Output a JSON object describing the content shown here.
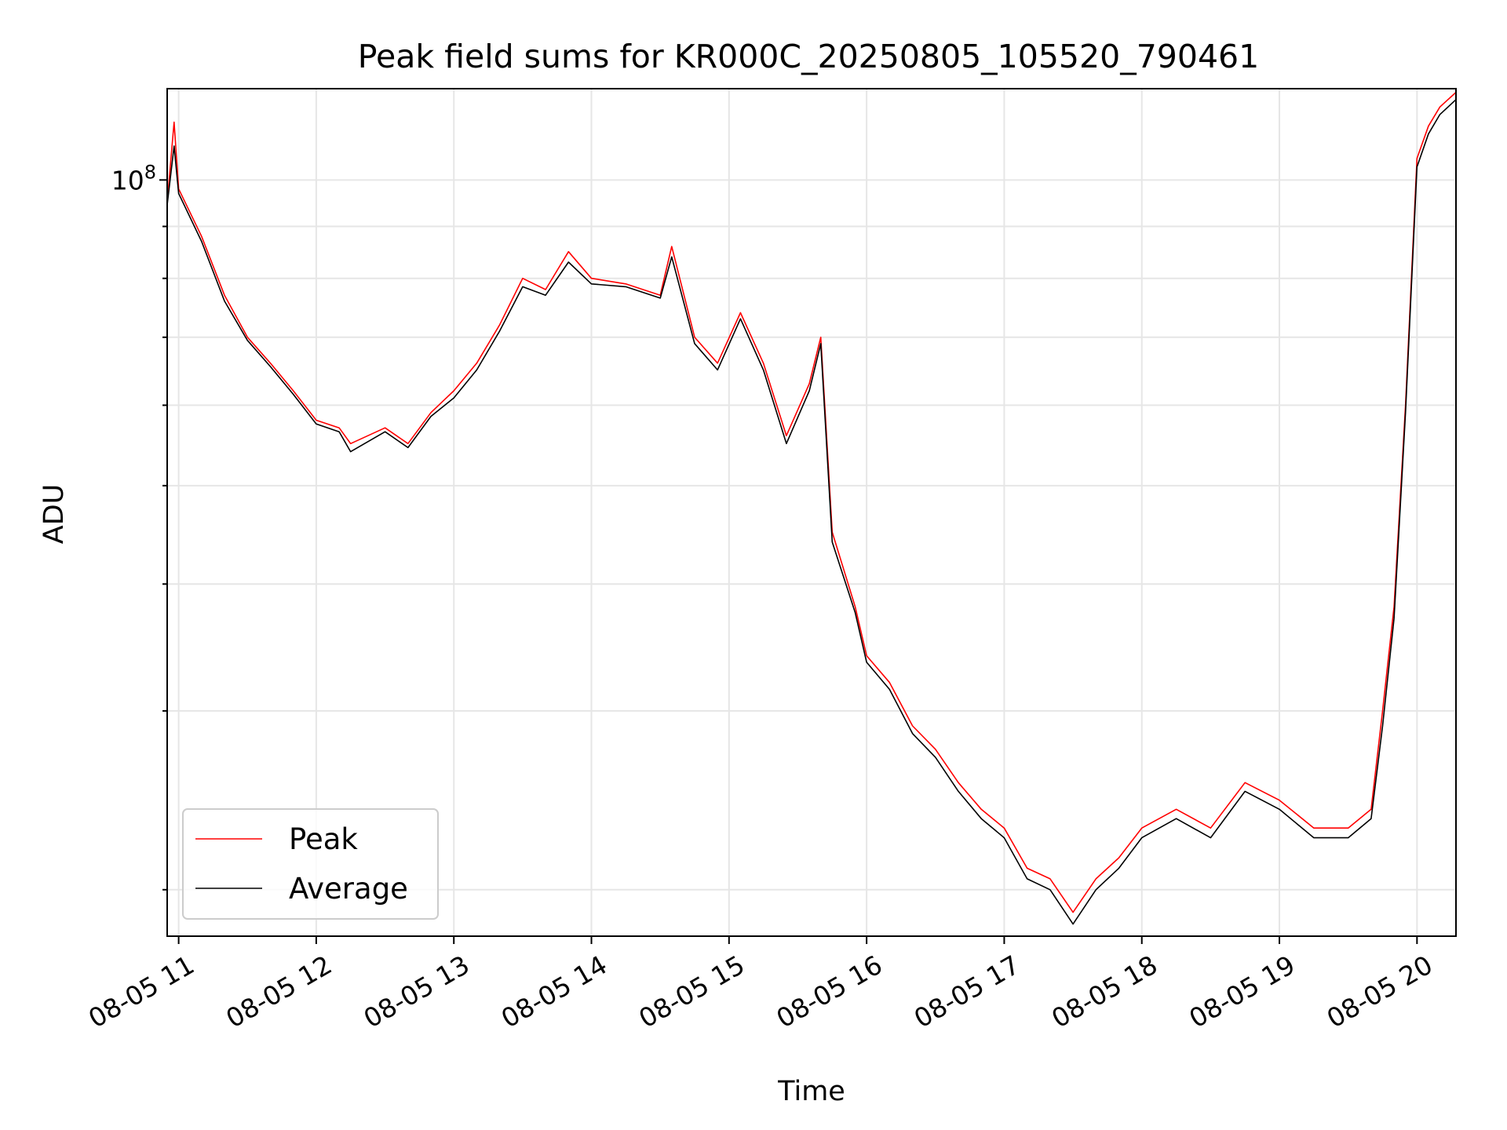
{
  "chart_data": {
    "type": "line",
    "title": "Peak field sums for KR000C_20250805_105520_790461",
    "xlabel": "Time",
    "ylabel": "ADU",
    "y_scale": "log",
    "xlim": [
      "2025-08-05 10:55",
      "2025-08-05 20:17"
    ],
    "ylim": [
      18000000,
      123000000
    ],
    "x_tick_labels": [
      "08-05 11",
      "08-05 12",
      "08-05 13",
      "08-05 14",
      "08-05 15",
      "08-05 16",
      "08-05 17",
      "08-05 18",
      "08-05 19",
      "08-05 20"
    ],
    "y_tick_labels": [
      {
        "base": "10",
        "exponent": "8"
      }
    ],
    "grid": true,
    "legend": {
      "location": "lower left"
    },
    "series": [
      {
        "name": "Peak",
        "color": "#ff0000",
        "points": [
          [
            "2025-08-05 10:55",
            95000000
          ],
          [
            "2025-08-05 10:58",
            114000000
          ],
          [
            "2025-08-05 11:00",
            98000000
          ],
          [
            "2025-08-05 11:10",
            88000000
          ],
          [
            "2025-08-05 11:20",
            77000000
          ],
          [
            "2025-08-05 11:30",
            70000000
          ],
          [
            "2025-08-05 11:40",
            66000000
          ],
          [
            "2025-08-05 11:50",
            62000000
          ],
          [
            "2025-08-05 12:00",
            58000000
          ],
          [
            "2025-08-05 12:10",
            57000000
          ],
          [
            "2025-08-05 12:15",
            55000000
          ],
          [
            "2025-08-05 12:30",
            57000000
          ],
          [
            "2025-08-05 12:40",
            55000000
          ],
          [
            "2025-08-05 12:50",
            59000000
          ],
          [
            "2025-08-05 13:00",
            62000000
          ],
          [
            "2025-08-05 13:10",
            66000000
          ],
          [
            "2025-08-05 13:20",
            72000000
          ],
          [
            "2025-08-05 13:30",
            80000000
          ],
          [
            "2025-08-05 13:40",
            78000000
          ],
          [
            "2025-08-05 13:50",
            85000000
          ],
          [
            "2025-08-05 14:00",
            80000000
          ],
          [
            "2025-08-05 14:15",
            79000000
          ],
          [
            "2025-08-05 14:30",
            77000000
          ],
          [
            "2025-08-05 14:35",
            86000000
          ],
          [
            "2025-08-05 14:45",
            70000000
          ],
          [
            "2025-08-05 14:55",
            66000000
          ],
          [
            "2025-08-05 15:05",
            74000000
          ],
          [
            "2025-08-05 15:15",
            66000000
          ],
          [
            "2025-08-05 15:25",
            56000000
          ],
          [
            "2025-08-05 15:35",
            63000000
          ],
          [
            "2025-08-05 15:40",
            70000000
          ],
          [
            "2025-08-05 15:45",
            45000000
          ],
          [
            "2025-08-05 15:55",
            38000000
          ],
          [
            "2025-08-05 16:00",
            34000000
          ],
          [
            "2025-08-05 16:10",
            32000000
          ],
          [
            "2025-08-05 16:20",
            29000000
          ],
          [
            "2025-08-05 16:30",
            27500000
          ],
          [
            "2025-08-05 16:40",
            25500000
          ],
          [
            "2025-08-05 16:50",
            24000000
          ],
          [
            "2025-08-05 17:00",
            23000000
          ],
          [
            "2025-08-05 17:10",
            21000000
          ],
          [
            "2025-08-05 17:20",
            20500000
          ],
          [
            "2025-08-05 17:30",
            19000000
          ],
          [
            "2025-08-05 17:40",
            20500000
          ],
          [
            "2025-08-05 17:50",
            21500000
          ],
          [
            "2025-08-05 18:00",
            23000000
          ],
          [
            "2025-08-05 18:15",
            24000000
          ],
          [
            "2025-08-05 18:30",
            23000000
          ],
          [
            "2025-08-05 18:45",
            25500000
          ],
          [
            "2025-08-05 19:00",
            24500000
          ],
          [
            "2025-08-05 19:15",
            23000000
          ],
          [
            "2025-08-05 19:30",
            23000000
          ],
          [
            "2025-08-05 19:40",
            24000000
          ],
          [
            "2025-08-05 19:45",
            30000000
          ],
          [
            "2025-08-05 19:50",
            38000000
          ],
          [
            "2025-08-05 19:55",
            60000000
          ],
          [
            "2025-08-05 20:00",
            105000000
          ],
          [
            "2025-08-05 20:05",
            113000000
          ],
          [
            "2025-08-05 20:10",
            118000000
          ],
          [
            "2025-08-05 20:17",
            122000000
          ]
        ]
      },
      {
        "name": "Average",
        "color": "#000000",
        "points": [
          [
            "2025-08-05 10:55",
            94500000
          ],
          [
            "2025-08-05 10:58",
            108000000
          ],
          [
            "2025-08-05 11:00",
            97000000
          ],
          [
            "2025-08-05 11:10",
            87000000
          ],
          [
            "2025-08-05 11:20",
            76000000
          ],
          [
            "2025-08-05 11:30",
            69500000
          ],
          [
            "2025-08-05 11:40",
            65500000
          ],
          [
            "2025-08-05 11:50",
            61500000
          ],
          [
            "2025-08-05 12:00",
            57500000
          ],
          [
            "2025-08-05 12:10",
            56500000
          ],
          [
            "2025-08-05 12:15",
            54000000
          ],
          [
            "2025-08-05 12:30",
            56500000
          ],
          [
            "2025-08-05 12:40",
            54500000
          ],
          [
            "2025-08-05 12:50",
            58500000
          ],
          [
            "2025-08-05 13:00",
            61000000
          ],
          [
            "2025-08-05 13:10",
            65000000
          ],
          [
            "2025-08-05 13:20",
            71000000
          ],
          [
            "2025-08-05 13:30",
            78500000
          ],
          [
            "2025-08-05 13:40",
            77000000
          ],
          [
            "2025-08-05 13:50",
            83000000
          ],
          [
            "2025-08-05 14:00",
            79000000
          ],
          [
            "2025-08-05 14:15",
            78500000
          ],
          [
            "2025-08-05 14:30",
            76500000
          ],
          [
            "2025-08-05 14:35",
            84000000
          ],
          [
            "2025-08-05 14:45",
            69000000
          ],
          [
            "2025-08-05 14:55",
            65000000
          ],
          [
            "2025-08-05 15:05",
            73000000
          ],
          [
            "2025-08-05 15:15",
            65000000
          ],
          [
            "2025-08-05 15:25",
            55000000
          ],
          [
            "2025-08-05 15:35",
            62000000
          ],
          [
            "2025-08-05 15:40",
            69000000
          ],
          [
            "2025-08-05 15:45",
            44000000
          ],
          [
            "2025-08-05 15:55",
            37500000
          ],
          [
            "2025-08-05 16:00",
            33500000
          ],
          [
            "2025-08-05 16:10",
            31500000
          ],
          [
            "2025-08-05 16:20",
            28500000
          ],
          [
            "2025-08-05 16:30",
            27000000
          ],
          [
            "2025-08-05 16:40",
            25000000
          ],
          [
            "2025-08-05 16:50",
            23500000
          ],
          [
            "2025-08-05 17:00",
            22500000
          ],
          [
            "2025-08-05 17:10",
            20500000
          ],
          [
            "2025-08-05 17:20",
            20000000
          ],
          [
            "2025-08-05 17:30",
            18500000
          ],
          [
            "2025-08-05 17:40",
            20000000
          ],
          [
            "2025-08-05 17:50",
            21000000
          ],
          [
            "2025-08-05 18:00",
            22500000
          ],
          [
            "2025-08-05 18:15",
            23500000
          ],
          [
            "2025-08-05 18:30",
            22500000
          ],
          [
            "2025-08-05 18:45",
            25000000
          ],
          [
            "2025-08-05 19:00",
            24000000
          ],
          [
            "2025-08-05 19:15",
            22500000
          ],
          [
            "2025-08-05 19:30",
            22500000
          ],
          [
            "2025-08-05 19:40",
            23500000
          ],
          [
            "2025-08-05 19:45",
            29000000
          ],
          [
            "2025-08-05 19:50",
            37000000
          ],
          [
            "2025-08-05 19:55",
            59000000
          ],
          [
            "2025-08-05 20:00",
            103000000
          ],
          [
            "2025-08-05 20:05",
            111000000
          ],
          [
            "2025-08-05 20:10",
            116000000
          ],
          [
            "2025-08-05 20:17",
            120000000
          ]
        ]
      }
    ]
  }
}
